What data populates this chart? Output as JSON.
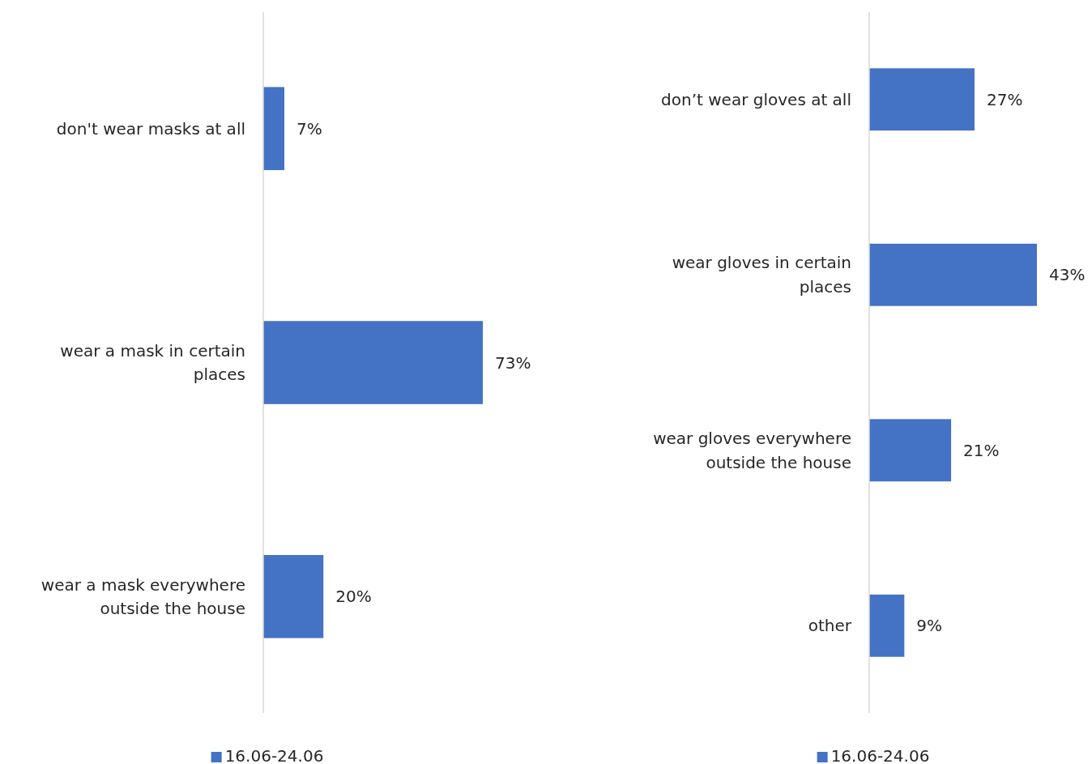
{
  "chart_data": [
    {
      "type": "bar",
      "orientation": "horizontal",
      "categories": [
        "don't wear masks at all",
        "wear a mask in certain places",
        "wear a mask everywhere outside the house"
      ],
      "series": [
        {
          "name": "16.06-24.06",
          "color": "#4472c4",
          "values": [
            7,
            73,
            20
          ],
          "value_labels": [
            "7%",
            "73%",
            "20%"
          ]
        }
      ],
      "legend": "bottom"
    },
    {
      "type": "bar",
      "orientation": "horizontal",
      "categories": [
        "don’t wear gloves at all",
        "wear gloves in certain places",
        "wear gloves everywhere outside the house",
        "other"
      ],
      "series": [
        {
          "name": "16.06-24.06",
          "color": "#4472c4",
          "values": [
            27,
            43,
            21,
            9
          ],
          "value_labels": [
            "27%",
            "43%",
            "21%",
            "9%"
          ]
        }
      ],
      "legend": "bottom"
    }
  ]
}
